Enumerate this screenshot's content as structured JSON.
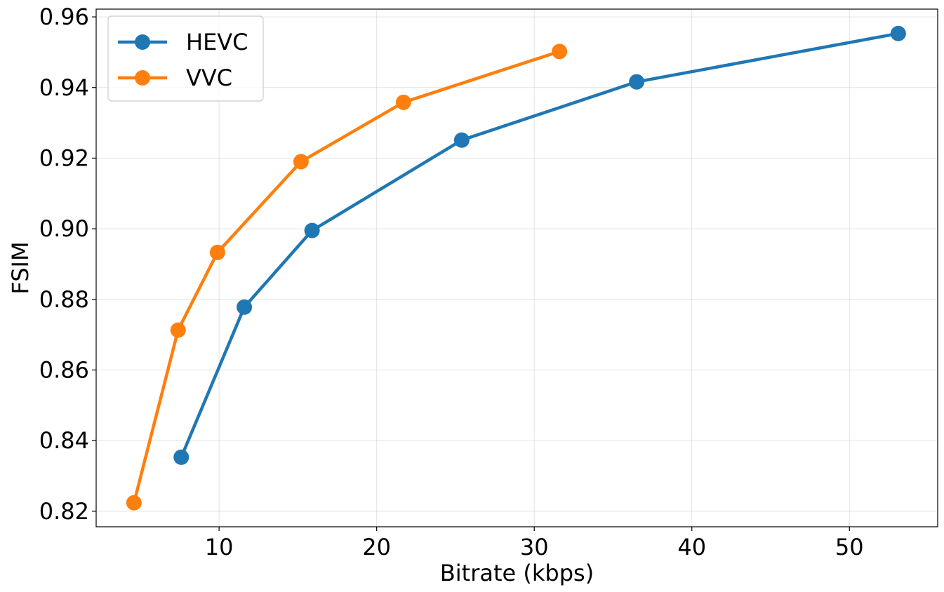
{
  "chart_data": {
    "type": "line",
    "title": "",
    "xlabel": "Bitrate (kbps)",
    "ylabel": "FSIM",
    "xlim": [
      2.2,
      55.6
    ],
    "ylim": [
      0.8156,
      0.9622
    ],
    "x_ticks": [
      10,
      20,
      30,
      40,
      50
    ],
    "x_tick_labels": [
      "10",
      "20",
      "30",
      "40",
      "50"
    ],
    "y_ticks": [
      0.82,
      0.84,
      0.86,
      0.88,
      0.9,
      0.92,
      0.94,
      0.96
    ],
    "y_tick_labels": [
      "0.82",
      "0.84",
      "0.86",
      "0.88",
      "0.90",
      "0.92",
      "0.94",
      "0.96"
    ],
    "grid": true,
    "legend_position": "top-left",
    "series": [
      {
        "name": "HEVC",
        "color": "#1f77b4",
        "x": [
          7.6,
          11.6,
          15.9,
          25.4,
          36.5,
          53.1
        ],
        "y": [
          0.8353,
          0.8778,
          0.8995,
          0.9251,
          0.9416,
          0.9553
        ]
      },
      {
        "name": "VVC",
        "color": "#ff7f0e",
        "x": [
          4.6,
          7.4,
          9.9,
          15.2,
          21.7,
          31.6
        ],
        "y": [
          0.8224,
          0.8713,
          0.8933,
          0.919,
          0.9358,
          0.9502
        ]
      }
    ]
  }
}
